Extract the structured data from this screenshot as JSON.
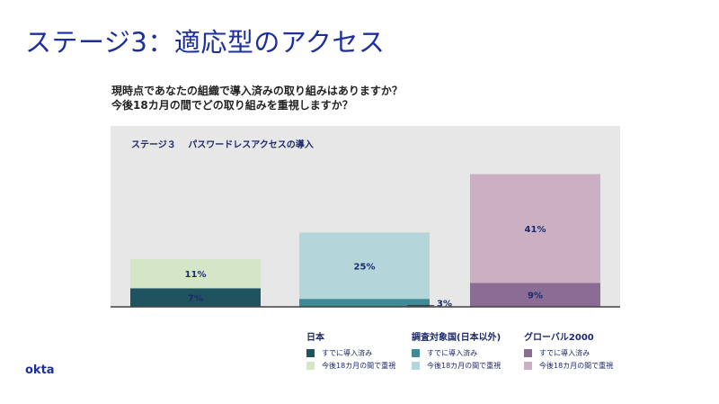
{
  "title": "ステージ3：適応型のアクセス",
  "question1": "現時点であなたの組織で導入済みの取り組みはありますか？",
  "question2": "今後18カ月の間でどの取り組みを重視しますか？",
  "logo": "okta",
  "chart_data": {
    "type": "bar",
    "stacked": true,
    "title": "ステージ３　 パスワードレスアクセスの導入",
    "categories": [
      "日本",
      "調査対象国(日本以外)",
      "グローバル2000"
    ],
    "series": [
      {
        "name": "すでに導入済み",
        "values": [
          7,
          3,
          9
        ],
        "labels": [
          "7%",
          "3%",
          "9%"
        ],
        "colors": [
          "#1f5360",
          "#3e8a97",
          "#8a6c94"
        ]
      },
      {
        "name": "今後18カ月の間で重視",
        "values": [
          11,
          25,
          41
        ],
        "labels": [
          "11%",
          "25%",
          "41%"
        ],
        "colors": [
          "#d4e6c6",
          "#b5d6d9",
          "#cbb0c3"
        ]
      }
    ],
    "ylim": [
      0,
      55
    ],
    "grid": false,
    "legend": "bottom"
  }
}
